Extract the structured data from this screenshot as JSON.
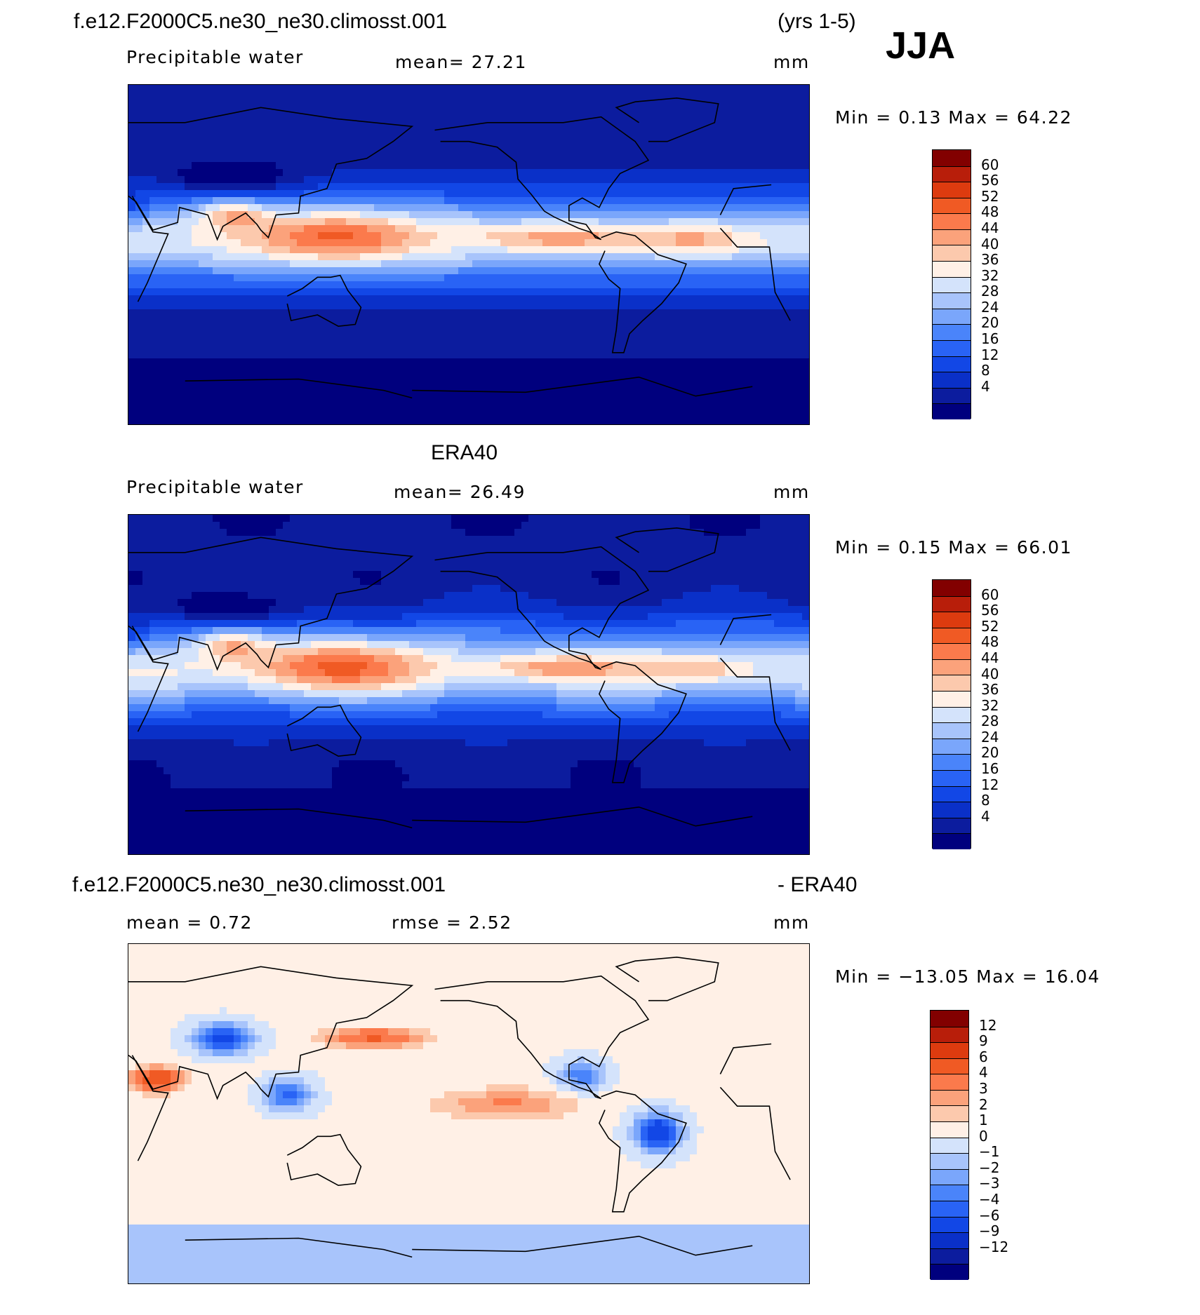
{
  "season": "JJA",
  "colors": {
    "pw_scale": [
      "#00007e",
      "#0c1c9e",
      "#0a30c8",
      "#1247e6",
      "#2963f5",
      "#4a84fa",
      "#7aa6fb",
      "#a8c4fb",
      "#d4e3fb",
      "#fff0e6",
      "#fcc9ad",
      "#fba27b",
      "#fb7a4c",
      "#f05a24",
      "#dd3b0f",
      "#b81e0a",
      "#820000"
    ],
    "diff_scale": [
      "#00007e",
      "#0c1c9e",
      "#0a30c8",
      "#1247e6",
      "#2963f5",
      "#4a84fa",
      "#7aa6fb",
      "#a8c4fb",
      "#d4e3fb",
      "#fff0e6",
      "#fcc9ad",
      "#fba27b",
      "#fb7a4c",
      "#f05a24",
      "#dd3b0f",
      "#b81e0a",
      "#820000"
    ]
  },
  "panels": [
    {
      "title_left": "f.e12.F2000C5.ne30_ne30.climosst.001",
      "title_right": "(yrs 1-5)",
      "variable": "Precipitable water",
      "stat": "mean=   27.21",
      "stat2": "",
      "units": "mm",
      "min_max": "Min =    0.13  Max =   64.22",
      "ticks": [
        "60",
        "56",
        "52",
        "48",
        "44",
        "40",
        "36",
        "32",
        "28",
        "24",
        "20",
        "16",
        "12",
        "8",
        "4"
      ]
    },
    {
      "title_center": "ERA40",
      "variable": "Precipitable water",
      "stat": "mean=   26.49",
      "stat2": "",
      "units": "mm",
      "min_max": "Min =    0.15  Max =   66.01",
      "ticks": [
        "60",
        "56",
        "52",
        "48",
        "44",
        "40",
        "36",
        "32",
        "28",
        "24",
        "20",
        "16",
        "12",
        "8",
        "4"
      ]
    },
    {
      "title_left": "f.e12.F2000C5.ne30_ne30.climosst.001",
      "title_right": "- ERA40",
      "variable": "",
      "stat": "mean =     0.72",
      "stat2": "rmse =     2.52",
      "units": "mm",
      "min_max": "Min = −13.05  Max =   16.04",
      "ticks": [
        "12",
        "9",
        "6",
        "4",
        "3",
        "2",
        "1",
        "0",
        "−1",
        "−2",
        "−3",
        "−4",
        "−6",
        "−9",
        "−12"
      ]
    }
  ]
}
